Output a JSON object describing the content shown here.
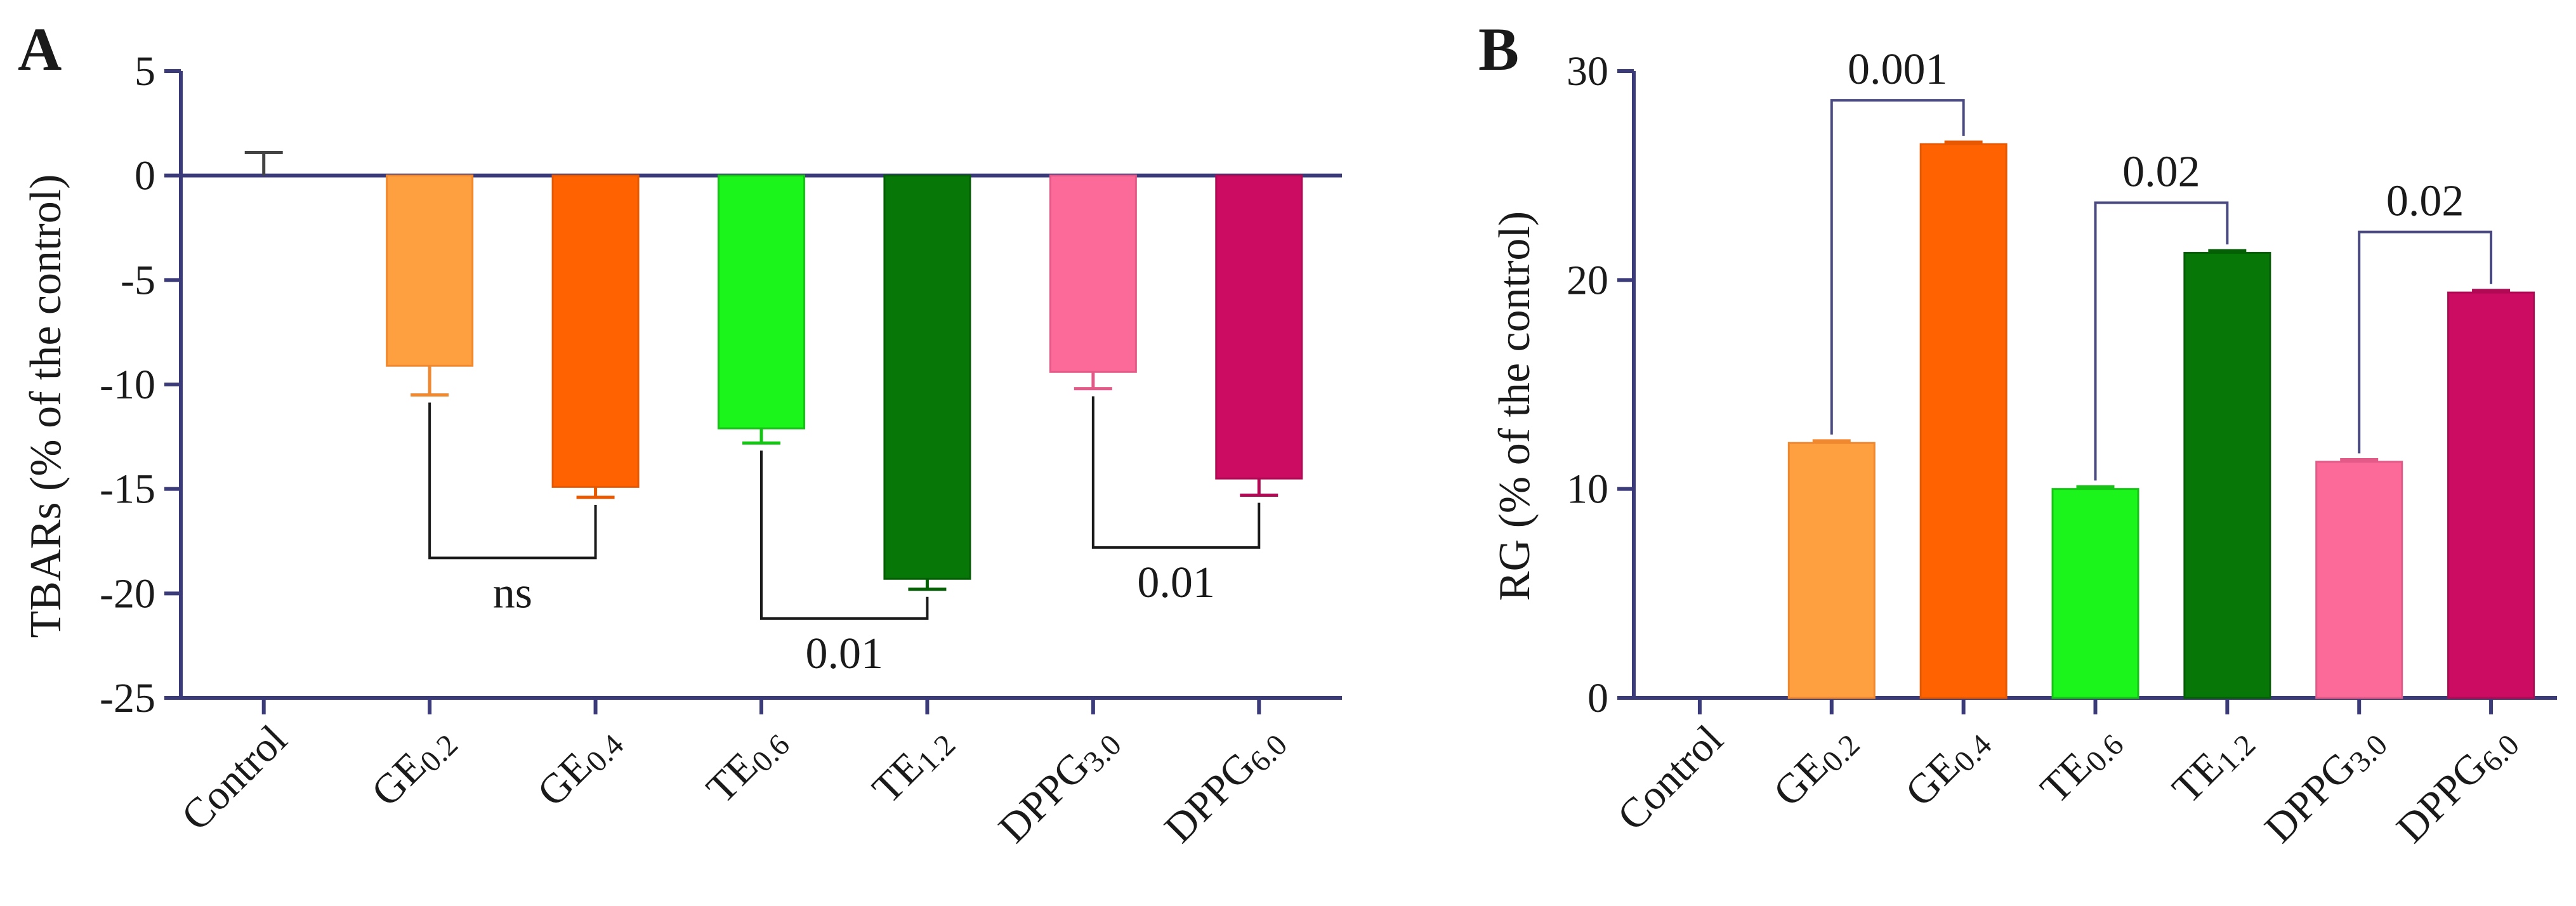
{
  "chart_data": [
    {
      "panel": "A",
      "type": "bar",
      "title": "",
      "xlabel": "",
      "ylabel": "TBARs (% of the control)",
      "ylim": [
        -25,
        5
      ],
      "yticks": [
        5,
        0,
        -5,
        -10,
        -15,
        -20,
        -25
      ],
      "ytick_labels": [
        "5",
        "0",
        "-5",
        "-10",
        "-15",
        "-20",
        "-25"
      ],
      "categories": [
        {
          "main": "Control",
          "sub": ""
        },
        {
          "main": "GE",
          "sub": "0.2"
        },
        {
          "main": "GE",
          "sub": "0.4"
        },
        {
          "main": "TE",
          "sub": "0.6"
        },
        {
          "main": "TE",
          "sub": "1.2"
        },
        {
          "main": "DPPG",
          "sub": "3.0"
        },
        {
          "main": "DPPG",
          "sub": "6.0"
        }
      ],
      "values": [
        0,
        -9.1,
        -14.9,
        -12.1,
        -19.3,
        -9.4,
        -14.5
      ],
      "errors": [
        1.1,
        1.4,
        0.5,
        0.7,
        0.5,
        0.8,
        0.8
      ],
      "colors": [
        "#ffffff",
        "#ffa040",
        "#ff6200",
        "#1cf51c",
        "#077707",
        "#fb6a98",
        "#cc0b63"
      ],
      "outline_colors": [
        "#444444",
        "#f08830",
        "#e85800",
        "#15c415",
        "#056005",
        "#e35a88",
        "#b00a55"
      ],
      "comparisons": [
        {
          "from": 1,
          "to": 2,
          "label": "ns",
          "bar_y": -18.3
        },
        {
          "from": 3,
          "to": 4,
          "label": "0.01",
          "bar_y": -21.2
        },
        {
          "from": 5,
          "to": 6,
          "label": "0.01",
          "bar_y": -17.8
        }
      ]
    },
    {
      "panel": "B",
      "type": "bar",
      "title": "",
      "xlabel": "",
      "ylabel": "RG (% of the control)",
      "ylim": [
        0,
        30
      ],
      "yticks": [
        0,
        10,
        20,
        30
      ],
      "ytick_labels": [
        "0",
        "10",
        "20",
        "30"
      ],
      "categories": [
        {
          "main": "Control",
          "sub": ""
        },
        {
          "main": "GE",
          "sub": "0.2"
        },
        {
          "main": "GE",
          "sub": "0.4"
        },
        {
          "main": "TE",
          "sub": "0.6"
        },
        {
          "main": "TE",
          "sub": "1.2"
        },
        {
          "main": "DPPG",
          "sub": "3.0"
        },
        {
          "main": "DPPG",
          "sub": "6.0"
        }
      ],
      "values": [
        0,
        12.2,
        26.5,
        10.0,
        21.3,
        11.3,
        19.4
      ],
      "errors": [
        0,
        0.1,
        0.1,
        0.1,
        0.1,
        0.1,
        0.1
      ],
      "colors": [
        "#ffffff",
        "#ffa040",
        "#ff6200",
        "#1cf51c",
        "#077707",
        "#fb6a98",
        "#cc0b63"
      ],
      "outline_colors": [
        "#444444",
        "#f08830",
        "#e85800",
        "#15c415",
        "#056005",
        "#e35a88",
        "#b00a55"
      ],
      "comparisons": [
        {
          "from": 1,
          "to": 2,
          "label": "0.001",
          "bar_y": 28.6
        },
        {
          "from": 3,
          "to": 4,
          "label": "0.02",
          "bar_y": 23.7
        },
        {
          "from": 5,
          "to": 6,
          "label": "0.02",
          "bar_y": 22.3
        }
      ]
    }
  ],
  "colors": {
    "axis": "#3b3b7a",
    "bracket_a": "#1a1a1a",
    "bracket_b": "#4a4a80"
  }
}
